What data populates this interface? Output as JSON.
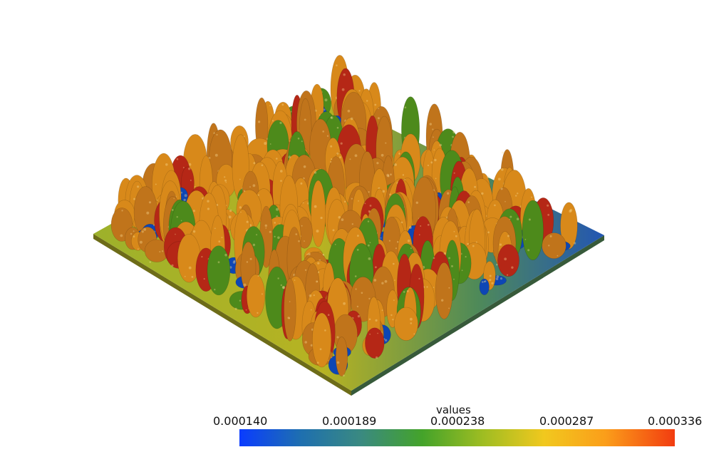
{
  "scene": {
    "description_free": true,
    "ground_color_near": "#b0ae24",
    "ground_color_far": "#2f6fb5",
    "tree_palette": [
      "#d8891a",
      "#c0741b",
      "#b52716",
      "#0d46b5",
      "#4d8a1b"
    ]
  },
  "legend": {
    "title": "values",
    "ticks": [
      "0.000140",
      "0.000189",
      "0.000238",
      "0.000287",
      "0.000336"
    ],
    "colormap": [
      "#0a3cff",
      "#1e6fb0",
      "#3a8a80",
      "#44a32a",
      "#9fbd22",
      "#f1c81e",
      "#fb9e1a",
      "#f23c10"
    ]
  }
}
